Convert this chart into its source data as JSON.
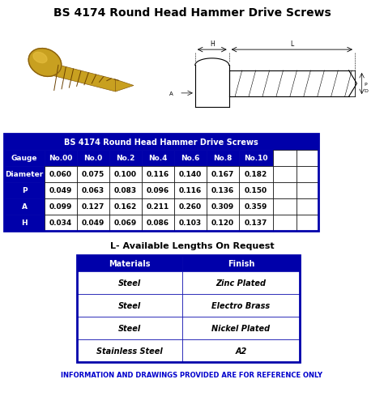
{
  "title": "BS 4174 Round Head Hammer Drive Screws",
  "main_table_header": "BS 4174 Round Head Hammer Drive Screws",
  "dark_blue": "#0000AA",
  "white": "#ffffff",
  "black": "#000000",
  "footer_color": "#0000CC",
  "col_headers": [
    "Gauge",
    "No.00",
    "No.0",
    "No.2",
    "No.4",
    "No.6",
    "No.8",
    "No.10",
    "",
    ""
  ],
  "rows": [
    {
      "label": "Diameter",
      "values": [
        "0.060",
        "0.075",
        "0.100",
        "0.116",
        "0.140",
        "0.167",
        "0.182",
        "",
        ""
      ]
    },
    {
      "label": "P",
      "values": [
        "0.049",
        "0.063",
        "0.083",
        "0.096",
        "0.116",
        "0.136",
        "0.150",
        "",
        ""
      ]
    },
    {
      "label": "A",
      "values": [
        "0.099",
        "0.127",
        "0.162",
        "0.211",
        "0.260",
        "0.309",
        "0.359",
        "",
        ""
      ]
    },
    {
      "label": "H",
      "values": [
        "0.034",
        "0.049",
        "0.069",
        "0.086",
        "0.103",
        "0.120",
        "0.137",
        "",
        ""
      ]
    }
  ],
  "lengths_label": "L- Available Lengths On Request",
  "mat_finish_header": [
    "Materials",
    "Finish"
  ],
  "mat_finish_data": [
    [
      "Steel",
      "Zinc Plated"
    ],
    [
      "Steel",
      "Electro Brass"
    ],
    [
      "Steel",
      "Nickel Plated"
    ],
    [
      "Stainless Steel",
      "A2"
    ]
  ],
  "footer": "INFORMATION AND DRAWINGS PROVIDED ARE FOR REFERENCE ONLY",
  "screw_color": "#C8A020",
  "screw_dark": "#8A6010",
  "screw_shadow": "#6A4000"
}
